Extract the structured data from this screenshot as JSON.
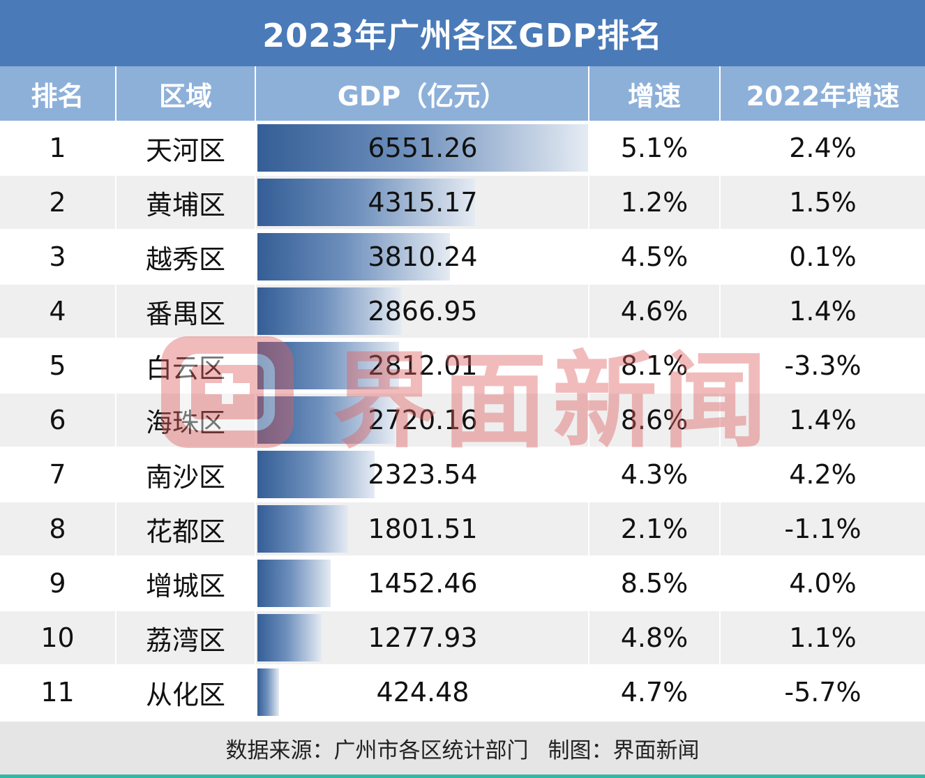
{
  "title": "2023年广州各区GDP排名",
  "headers": {
    "rank": "排名",
    "district": "区域",
    "gdp": "GDP（亿元）",
    "growth": "增速",
    "growth_2022": "2022年增速"
  },
  "chart_data": {
    "type": "bar",
    "title": "2023年广州各区GDP排名",
    "xlabel": "区域",
    "ylabel": "GDP（亿元）",
    "categories": [
      "天河区",
      "黄埔区",
      "越秀区",
      "番禺区",
      "白云区",
      "海珠区",
      "南沙区",
      "花都区",
      "增城区",
      "荔湾区",
      "从化区"
    ],
    "values": [
      6551.26,
      4315.17,
      3810.24,
      2866.95,
      2812.01,
      2720.16,
      2323.54,
      1801.51,
      1452.46,
      1277.93,
      424.48
    ],
    "ylim": [
      0,
      6551.26
    ],
    "rows": [
      {
        "rank": "1",
        "district": "天河区",
        "gdp": "6551.26",
        "growth": "5.1%",
        "growth_2022": "2.4%"
      },
      {
        "rank": "2",
        "district": "黄埔区",
        "gdp": "4315.17",
        "growth": "1.2%",
        "growth_2022": "1.5%"
      },
      {
        "rank": "3",
        "district": "越秀区",
        "gdp": "3810.24",
        "growth": "4.5%",
        "growth_2022": "0.1%"
      },
      {
        "rank": "4",
        "district": "番禺区",
        "gdp": "2866.95",
        "growth": "4.6%",
        "growth_2022": "1.4%"
      },
      {
        "rank": "5",
        "district": "白云区",
        "gdp": "2812.01",
        "growth": "8.1%",
        "growth_2022": "-3.3%"
      },
      {
        "rank": "6",
        "district": "海珠区",
        "gdp": "2720.16",
        "growth": "8.6%",
        "growth_2022": "1.4%"
      },
      {
        "rank": "7",
        "district": "南沙区",
        "gdp": "2323.54",
        "growth": "4.3%",
        "growth_2022": "4.2%"
      },
      {
        "rank": "8",
        "district": "花都区",
        "gdp": "1801.51",
        "growth": "2.1%",
        "growth_2022": "-1.1%"
      },
      {
        "rank": "9",
        "district": "增城区",
        "gdp": "1452.46",
        "growth": "8.5%",
        "growth_2022": "4.0%"
      },
      {
        "rank": "10",
        "district": "荔湾区",
        "gdp": "1277.93",
        "growth": "4.8%",
        "growth_2022": "1.1%"
      },
      {
        "rank": "11",
        "district": "从化区",
        "gdp": "424.48",
        "growth": "4.7%",
        "growth_2022": "-5.7%"
      }
    ],
    "bar_color_start": "#345e96",
    "bar_color_end": "#e5ebf3"
  },
  "footer": {
    "source": "数据来源：广州市各区统计部门",
    "credit": "制图：界面新闻"
  },
  "watermark": {
    "text": "界面新闻",
    "icon": "jiemian-logo-icon"
  },
  "colors": {
    "title_bg": "#4a7ab8",
    "header_bg": "#8db0d9",
    "stripe": "#efefef",
    "accent_line": "#2fb8a8",
    "watermark": "#e06060"
  }
}
